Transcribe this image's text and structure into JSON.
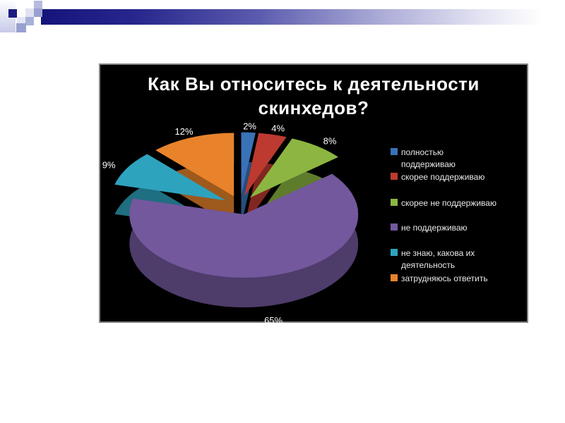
{
  "slide": {
    "title_line1": "Как Вы относитесь к деятельности",
    "title_line2": "скинхедов?"
  },
  "chart_data": {
    "type": "pie",
    "style": "3d-exploded-pie",
    "title": "Как Вы относитесь к деятельности скинхедов?",
    "unit": "%",
    "labels": [
      "полностью поддерживаю",
      "скорее поддерживаю",
      "скорее не поддерживаю",
      "не поддерживаю",
      "не знаю, какова их деятельность",
      "затрудняюсь ответить"
    ],
    "values": [
      2,
      4,
      8,
      65,
      9,
      12
    ],
    "colors": [
      "#3a72b8",
      "#bd3a30",
      "#8cb641",
      "#73589d",
      "#2ea3be",
      "#e8832b"
    ],
    "data_labels": [
      "2%",
      "4%",
      "8%",
      "65%",
      "9%",
      "12%"
    ],
    "legend_position": "right",
    "legend": [
      {
        "lines": [
          "полностью",
          "поддерживаю"
        ]
      },
      {
        "lines": [
          "скорее поддерживаю"
        ]
      },
      {
        "lines": [
          "скорее не поддерживаю"
        ]
      },
      {
        "lines": [
          "не поддерживаю"
        ]
      },
      {
        "lines": [
          "не знаю, какова их",
          "деятельность"
        ]
      },
      {
        "lines": [
          "затрудняюсь ответить"
        ]
      }
    ],
    "background": "#000000"
  },
  "theme": {
    "accent_navy": "#14147a",
    "panel_border": "#858585",
    "title_color": "#ffffff",
    "legend_text_color": "#e8e8e8"
  }
}
